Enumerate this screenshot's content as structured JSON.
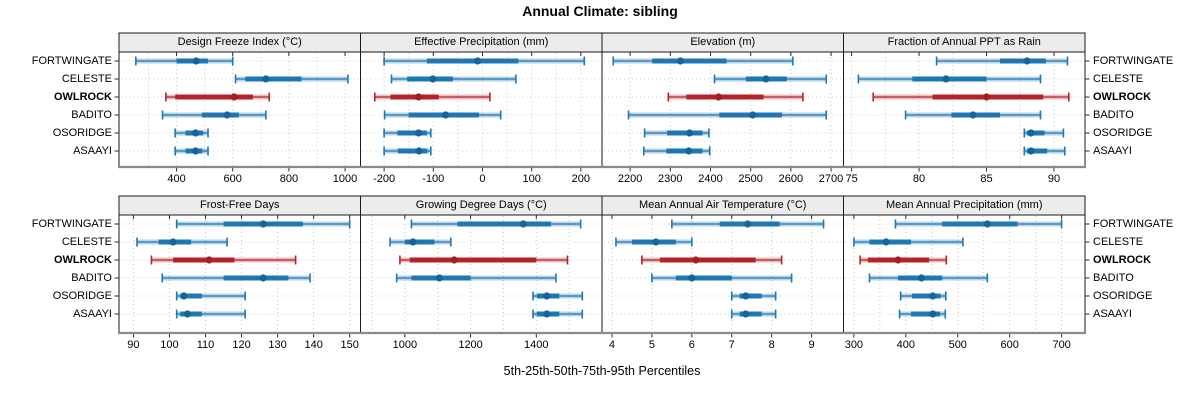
{
  "title": "Annual Climate: sibling",
  "xlabel": "5th-25th-50th-75th-95th Percentiles",
  "sites": [
    "FORTWINGATE",
    "CELESTE",
    "OWLROCK",
    "BADITO",
    "OSORIDGE",
    "ASAAYI"
  ],
  "highlight_site": "OWLROCK",
  "colors": {
    "series_blue": "#1f77b4",
    "series_blue_light": "rgba(31,119,180,0.32)",
    "series_blue_dot": "#16639e",
    "highlight_red": "#b42328",
    "highlight_red_light": "rgba(180,35,40,0.30)",
    "highlight_red_dot": "#a51d22",
    "strip_bg": "#ececec",
    "panel_border": "#1a1a1a",
    "grid": "#c6c6c6",
    "row_grid": "#d2d2d2",
    "axis_line": "#8a8a8a",
    "tick": "#2a2a2a"
  },
  "chart_data": {
    "type": "interval-dotplot",
    "percentiles": [
      "5th",
      "25th",
      "50th",
      "75th",
      "95th"
    ],
    "layout": "2 rows x 4 columns, free x scales, shared site y-axis",
    "panels": [
      {
        "title": "Design Freeze Index (°C)",
        "xlim": [
          195,
          1055
        ],
        "ticks": [
          400,
          600,
          800,
          1000
        ],
        "grid": [
          300,
          400,
          500,
          600,
          700,
          800,
          900,
          1000
        ],
        "values": [
          [
            255,
            400,
            470,
            512,
            600
          ],
          [
            610,
            645,
            718,
            845,
            1010
          ],
          [
            362,
            395,
            605,
            672,
            730
          ],
          [
            350,
            490,
            580,
            622,
            718
          ],
          [
            395,
            432,
            468,
            495,
            512
          ],
          [
            395,
            432,
            468,
            492,
            512
          ]
        ]
      },
      {
        "title": "Effective Precipitation (mm)",
        "xlim": [
          -248,
          243
        ],
        "ticks": [
          -200,
          -100,
          0,
          100,
          200
        ],
        "grid": [
          -200,
          -150,
          -100,
          -50,
          0,
          50,
          100,
          150,
          200
        ],
        "values": [
          [
            -200,
            -113,
            -10,
            73,
            207
          ],
          [
            -185,
            -153,
            -101,
            -60,
            68
          ],
          [
            -219,
            -187,
            -130,
            -89,
            15
          ],
          [
            -199,
            -150,
            -75,
            -7,
            37
          ],
          [
            -200,
            -173,
            -130,
            -113,
            -105
          ],
          [
            -200,
            -172,
            -129,
            -112,
            -105
          ]
        ]
      },
      {
        "title": "Elevation (m)",
        "xlim": [
          2130,
          2731
        ],
        "ticks": [
          2200,
          2300,
          2400,
          2500,
          2600,
          2700
        ],
        "grid": [
          2200,
          2300,
          2400,
          2500,
          2600,
          2700
        ],
        "values": [
          [
            2158,
            2255,
            2325,
            2440,
            2605
          ],
          [
            2410,
            2488,
            2538,
            2590,
            2688
          ],
          [
            2295,
            2340,
            2420,
            2532,
            2630
          ],
          [
            2196,
            2422,
            2505,
            2578,
            2688
          ],
          [
            2236,
            2292,
            2348,
            2380,
            2396
          ],
          [
            2234,
            2290,
            2346,
            2380,
            2398
          ]
        ]
      },
      {
        "title": "Fraction of Annual PPT as Rain",
        "xlim": [
          74.4,
          92.3
        ],
        "ticks": [
          75,
          80,
          85,
          90
        ],
        "grid": [
          75,
          77.5,
          80,
          82.5,
          85,
          87.5,
          90
        ],
        "values": [
          [
            81.3,
            86.0,
            88.0,
            89.4,
            91.0
          ],
          [
            75.5,
            79.5,
            82.0,
            85.0,
            89.0
          ],
          [
            76.6,
            81.0,
            85.0,
            89.2,
            91.1
          ],
          [
            79.0,
            82.4,
            84.0,
            86.0,
            89.0
          ],
          [
            87.8,
            88.0,
            88.3,
            89.3,
            90.7
          ],
          [
            87.8,
            88.0,
            88.3,
            89.5,
            90.8
          ]
        ]
      },
      {
        "title": "Frost-Free Days",
        "xlim": [
          86,
          153
        ],
        "ticks": [
          90,
          100,
          110,
          120,
          130,
          140,
          150
        ],
        "grid": [
          90,
          100,
          110,
          120,
          130,
          140,
          150
        ],
        "values": [
          [
            102,
            115,
            126,
            137,
            150
          ],
          [
            91,
            97,
            101,
            106,
            116
          ],
          [
            95,
            101,
            111,
            118,
            135
          ],
          [
            98,
            115,
            126,
            133,
            139
          ],
          [
            102,
            103,
            104,
            109,
            121
          ],
          [
            102,
            103,
            105,
            109,
            121
          ]
        ]
      },
      {
        "title": "Growing Degree Days (°C)",
        "xlim": [
          865,
          1600
        ],
        "ticks": [
          1000,
          1200,
          1400
        ],
        "grid": [
          900,
          1000,
          1100,
          1200,
          1300,
          1400,
          1500
        ],
        "values": [
          [
            1020,
            1160,
            1360,
            1445,
            1535
          ],
          [
            955,
            1000,
            1025,
            1090,
            1140
          ],
          [
            985,
            1015,
            1150,
            1400,
            1495
          ],
          [
            975,
            1020,
            1105,
            1200,
            1460
          ],
          [
            1390,
            1402,
            1432,
            1470,
            1540
          ],
          [
            1390,
            1402,
            1432,
            1470,
            1540
          ]
        ]
      },
      {
        "title": "Mean Annual Air Temperature (°C)",
        "xlim": [
          3.75,
          9.8
        ],
        "ticks": [
          4,
          5,
          6,
          7,
          8,
          9
        ],
        "grid": [
          4,
          5,
          6,
          7,
          8,
          9
        ],
        "values": [
          [
            5.5,
            6.7,
            7.4,
            8.2,
            9.3
          ],
          [
            4.1,
            4.5,
            5.1,
            5.6,
            6.0
          ],
          [
            4.75,
            5.2,
            6.1,
            7.6,
            8.25
          ],
          [
            5.0,
            5.6,
            6.0,
            7.0,
            8.5
          ],
          [
            7.0,
            7.2,
            7.35,
            7.75,
            8.1
          ],
          [
            7.0,
            7.2,
            7.35,
            7.75,
            8.1
          ]
        ]
      },
      {
        "title": "Mean Annual Precipitation (mm)",
        "xlim": [
          280,
          745
        ],
        "ticks": [
          300,
          400,
          500,
          600,
          700
        ],
        "grid": [
          300,
          350,
          400,
          450,
          500,
          550,
          600,
          650,
          700
        ],
        "values": [
          [
            380,
            470,
            557,
            615,
            700
          ],
          [
            300,
            330,
            362,
            410,
            510
          ],
          [
            312,
            327,
            385,
            445,
            478
          ],
          [
            330,
            385,
            430,
            470,
            557
          ],
          [
            390,
            412,
            452,
            467,
            477
          ],
          [
            388,
            410,
            452,
            466,
            476
          ]
        ]
      }
    ]
  }
}
